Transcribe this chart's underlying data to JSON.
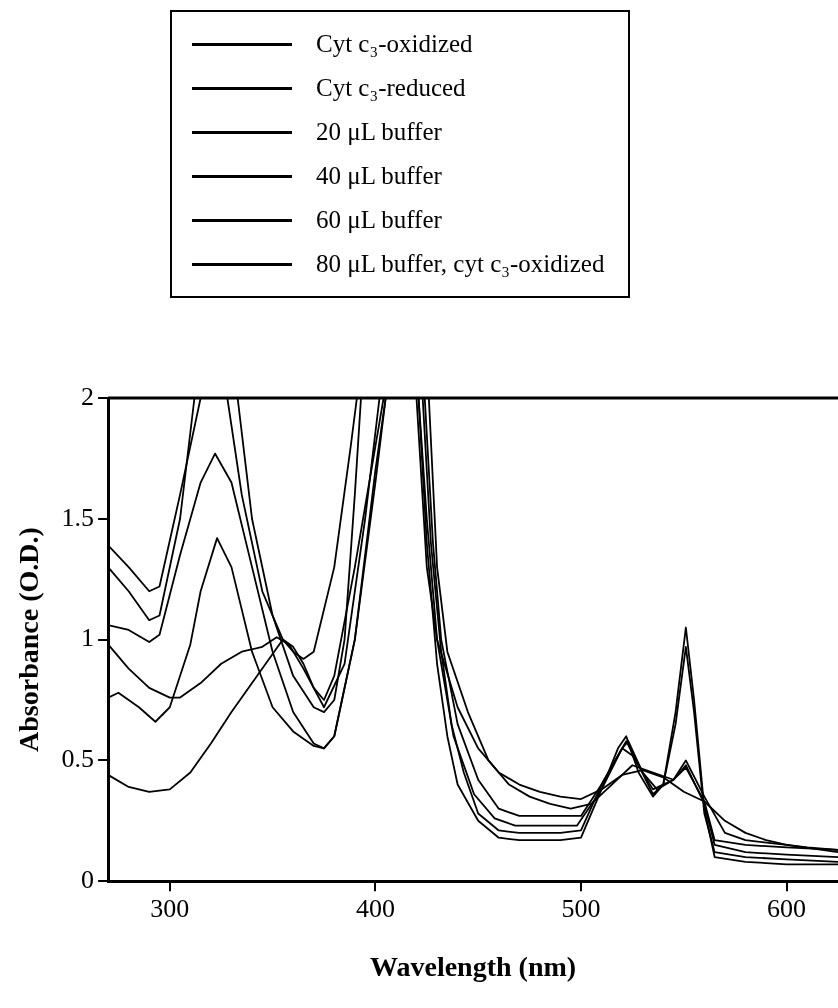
{
  "chart_data": {
    "type": "line",
    "xlabel": "Wavelength (nm)",
    "ylabel": "Absorbance (O.D.)",
    "xlim": [
      270,
      625
    ],
    "xticks": [
      300,
      400,
      500,
      600
    ],
    "ylim": [
      0,
      2
    ],
    "yticks": [
      0,
      0.5,
      1,
      1.5,
      2
    ],
    "grid": false,
    "legend": "top",
    "marker": "none",
    "line_style": "solid",
    "series": [
      {
        "name": "Cyt c₃-oxidized",
        "color": "#000000",
        "x": [
          270,
          280,
          290,
          300,
          310,
          320,
          330,
          340,
          350,
          355,
          360,
          365,
          370,
          375,
          380,
          390,
          400,
          404,
          412,
          420,
          425,
          430,
          440,
          450,
          460,
          470,
          480,
          490,
          500,
          510,
          520,
          530,
          540,
          550,
          560,
          570,
          580,
          590,
          600,
          610,
          625
        ],
        "values": [
          0.44,
          0.39,
          0.37,
          0.38,
          0.45,
          0.57,
          0.7,
          0.82,
          0.94,
          1.0,
          0.97,
          0.9,
          0.8,
          0.75,
          0.85,
          1.3,
          1.8,
          2,
          null,
          2,
          1.3,
          1.0,
          0.72,
          0.55,
          0.45,
          0.4,
          0.37,
          0.35,
          0.34,
          0.38,
          0.44,
          0.46,
          0.43,
          0.37,
          0.33,
          0.25,
          0.2,
          0.17,
          0.15,
          0.14,
          0.13
        ]
      },
      {
        "name": "Cyt c₃-reduced",
        "color": "#000000",
        "x": [
          270,
          275,
          285,
          293,
          300,
          310,
          315,
          323,
          330,
          340,
          350,
          360,
          370,
          375,
          380,
          390,
          400,
          405,
          413,
          421,
          425,
          430,
          435,
          440,
          450,
          460,
          470,
          480,
          490,
          500,
          510,
          518,
          522,
          528,
          535,
          540,
          546,
          551,
          555,
          560,
          565,
          580,
          600,
          625
        ],
        "values": [
          0.76,
          0.78,
          0.72,
          0.66,
          0.72,
          0.98,
          1.2,
          1.42,
          1.3,
          0.95,
          0.72,
          0.62,
          0.56,
          0.55,
          0.6,
          1.0,
          1.65,
          2,
          null,
          2,
          1.4,
          0.9,
          0.6,
          0.4,
          0.25,
          0.18,
          0.17,
          0.17,
          0.17,
          0.18,
          0.38,
          0.55,
          0.6,
          0.45,
          0.35,
          0.4,
          0.7,
          1.05,
          0.75,
          0.3,
          0.1,
          0.08,
          0.07,
          0.07
        ]
      },
      {
        "name": "20 μL buffer",
        "color": "#000000",
        "x": [
          270,
          280,
          290,
          295,
          305,
          315,
          322,
          330,
          340,
          350,
          360,
          370,
          375,
          380,
          390,
          400,
          405,
          413,
          423,
          427,
          432,
          437,
          443,
          450,
          460,
          470,
          480,
          490,
          500,
          510,
          518,
          522,
          528,
          535,
          540,
          546,
          551,
          555,
          560,
          565,
          580,
          600,
          625
        ],
        "values": [
          1.06,
          1.04,
          0.99,
          1.02,
          1.35,
          1.65,
          1.77,
          1.65,
          1.3,
          0.95,
          0.7,
          0.57,
          0.55,
          0.6,
          1.0,
          1.7,
          2,
          null,
          2,
          1.4,
          0.95,
          0.65,
          0.45,
          0.28,
          0.21,
          0.2,
          0.2,
          0.2,
          0.21,
          0.4,
          0.52,
          0.58,
          0.48,
          0.36,
          0.4,
          0.65,
          0.97,
          0.7,
          0.28,
          0.12,
          0.1,
          0.09,
          0.08
        ]
      },
      {
        "name": "40 μL buffer",
        "color": "#000000",
        "x": [
          270,
          280,
          290,
          295,
          305,
          312,
          322,
          333,
          340,
          350,
          360,
          370,
          375,
          380,
          385,
          390,
          393,
          408,
          424,
          428,
          432,
          440,
          450,
          460,
          470,
          480,
          490,
          500,
          510,
          520,
          525,
          535,
          545,
          551,
          560,
          565,
          580,
          600,
          625
        ],
        "values": [
          1.3,
          1.2,
          1.08,
          1.1,
          1.5,
          2,
          null,
          2,
          1.5,
          1.1,
          0.85,
          0.72,
          0.7,
          0.75,
          1.0,
          1.6,
          2,
          null,
          2,
          1.4,
          1.0,
          0.65,
          0.42,
          0.3,
          0.27,
          0.27,
          0.27,
          0.27,
          0.4,
          0.55,
          0.52,
          0.38,
          0.42,
          0.48,
          0.32,
          0.15,
          0.12,
          0.11,
          0.1
        ]
      },
      {
        "name": "60 μL buffer",
        "color": "#000000",
        "x": [
          270,
          280,
          290,
          295,
          305,
          315,
          322,
          328,
          335,
          345,
          355,
          360,
          365,
          370,
          380,
          388,
          391,
          408,
          426,
          430,
          435,
          445,
          455,
          465,
          475,
          485,
          495,
          505,
          515,
          525,
          535,
          545,
          551,
          560,
          570,
          580,
          600,
          625
        ],
        "values": [
          1.39,
          1.3,
          1.2,
          1.22,
          1.6,
          2,
          null,
          2,
          1.6,
          1.2,
          1.0,
          0.95,
          0.92,
          0.95,
          1.3,
          1.8,
          2,
          null,
          2,
          1.3,
          0.95,
          0.7,
          0.5,
          0.4,
          0.35,
          0.32,
          0.3,
          0.32,
          0.4,
          0.48,
          0.45,
          0.42,
          0.5,
          0.35,
          0.2,
          0.17,
          0.15,
          0.12
        ]
      },
      {
        "name": "80 μL buffer, cyt c₃-oxidized",
        "color": "#000000",
        "x": [
          270,
          280,
          290,
          300,
          305,
          315,
          325,
          335,
          345,
          352,
          358,
          365,
          375,
          385,
          395,
          402,
          412,
          421,
          425,
          430,
          438,
          448,
          458,
          468,
          478,
          488,
          498,
          510,
          520,
          523,
          530,
          537,
          545,
          551,
          560,
          565,
          580,
          600,
          625
        ],
        "values": [
          0.98,
          0.88,
          0.8,
          0.76,
          0.76,
          0.82,
          0.9,
          0.95,
          0.97,
          1.01,
          0.98,
          0.88,
          0.72,
          0.9,
          1.5,
          2,
          null,
          2,
          1.5,
          1.0,
          0.6,
          0.36,
          0.26,
          0.23,
          0.23,
          0.23,
          0.23,
          0.38,
          0.55,
          0.58,
          0.45,
          0.38,
          0.42,
          0.47,
          0.33,
          0.17,
          0.15,
          0.14,
          0.13
        ]
      }
    ]
  }
}
